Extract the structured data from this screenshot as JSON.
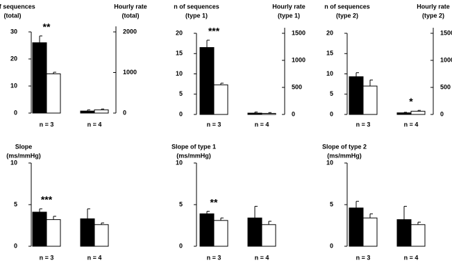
{
  "chart_data": [
    {
      "type": "bar",
      "y_label": [
        "n of sequences",
        "(total)"
      ],
      "y2_label": [
        "Hourly rate",
        "(total)"
      ],
      "categories": [
        "n = 3",
        "n = 4"
      ],
      "ylim": [
        0,
        30
      ],
      "yticks": [
        0,
        10,
        20,
        30
      ],
      "y2lim": [
        0,
        2000
      ],
      "y2ticks": [
        0,
        1000,
        2000
      ],
      "series": [
        {
          "color": "#000000",
          "values": [
            26,
            null
          ],
          "errors": [
            2.5,
            null
          ]
        },
        {
          "color": "#ffffff",
          "values": [
            14.5,
            null
          ],
          "errors": [
            0.6,
            null
          ]
        },
        {
          "color": "#000000",
          "axis": "y2",
          "values": [
            null,
            50
          ],
          "errors": [
            null,
            30
          ]
        },
        {
          "color": "#ffffff",
          "axis": "y2",
          "values": [
            null,
            80
          ],
          "errors": [
            null,
            20
          ]
        }
      ],
      "annotations": [
        {
          "text": "**",
          "category": "n = 3"
        }
      ]
    },
    {
      "type": "bar",
      "y_label": [
        "n of sequences",
        "(type 1)"
      ],
      "y2_label": [
        "Hourly rate",
        "(type 1)"
      ],
      "categories": [
        "n = 3",
        "n = 4"
      ],
      "ylim": [
        0,
        20
      ],
      "yticks": [
        0,
        5,
        10,
        15,
        20
      ],
      "y2lim": [
        0,
        1500
      ],
      "y2ticks": [
        0,
        500,
        1000,
        1500
      ],
      "series": [
        {
          "color": "#000000",
          "values": [
            16.5,
            null
          ],
          "errors": [
            1.8,
            null
          ]
        },
        {
          "color": "#ffffff",
          "values": [
            7.3,
            null
          ],
          "errors": [
            0.4,
            null
          ]
        },
        {
          "color": "#000000",
          "axis": "y2",
          "values": [
            null,
            25
          ],
          "errors": [
            null,
            20
          ]
        },
        {
          "color": "#ffffff",
          "axis": "y2",
          "values": [
            null,
            20
          ],
          "errors": [
            null,
            15
          ]
        }
      ],
      "annotations": [
        {
          "text": "***",
          "category": "n = 3"
        }
      ]
    },
    {
      "type": "bar",
      "y_label": [
        "n of sequences",
        "(type 2)"
      ],
      "y2_label": [
        "Hourly rate",
        "(type 2)"
      ],
      "categories": [
        "n = 3",
        "n = 4"
      ],
      "ylim": [
        0,
        20
      ],
      "yticks": [
        0,
        5,
        10,
        15,
        20
      ],
      "y2lim": [
        0,
        1500
      ],
      "y2ticks": [
        0,
        500,
        1000,
        1500
      ],
      "series": [
        {
          "color": "#000000",
          "values": [
            9.3,
            null
          ],
          "errors": [
            1,
            null
          ]
        },
        {
          "color": "#ffffff",
          "values": [
            7,
            null
          ],
          "errors": [
            1.5,
            null
          ]
        },
        {
          "color": "#000000",
          "axis": "y2",
          "values": [
            null,
            30
          ],
          "errors": [
            null,
            10
          ]
        },
        {
          "color": "#ffffff",
          "axis": "y2",
          "values": [
            null,
            60
          ],
          "errors": [
            null,
            15
          ]
        }
      ],
      "annotations": [
        {
          "text": "*",
          "category": "n = 4"
        }
      ]
    },
    {
      "type": "bar",
      "y_label": [
        "Slope",
        "(ms/mmHg)"
      ],
      "categories": [
        "n = 3",
        "n = 4"
      ],
      "ylim": [
        0,
        10
      ],
      "yticks": [
        0,
        5,
        10
      ],
      "series": [
        {
          "color": "#000000",
          "values": [
            4.1,
            3.3
          ],
          "errors": [
            0.4,
            1.2
          ]
        },
        {
          "color": "#ffffff",
          "values": [
            3.2,
            2.6
          ],
          "errors": [
            0.4,
            0.2
          ]
        }
      ],
      "annotations": [
        {
          "text": "***",
          "category": "n = 3"
        }
      ]
    },
    {
      "type": "bar",
      "y_label": [
        "Slope of type 1",
        "(ms/mmHg)"
      ],
      "categories": [
        "n = 3",
        "n = 4"
      ],
      "ylim": [
        0,
        10
      ],
      "yticks": [
        0,
        5,
        10
      ],
      "series": [
        {
          "color": "#000000",
          "values": [
            3.9,
            3.4
          ],
          "errors": [
            0.3,
            1.4
          ]
        },
        {
          "color": "#ffffff",
          "values": [
            3.1,
            2.6
          ],
          "errors": [
            0.3,
            0.4
          ]
        }
      ],
      "annotations": [
        {
          "text": "**",
          "category": "n = 3"
        }
      ]
    },
    {
      "type": "bar",
      "y_label": [
        "Slope of type 2",
        "(ms/mmHg)"
      ],
      "categories": [
        "n = 3",
        "n = 4"
      ],
      "ylim": [
        0,
        10
      ],
      "yticks": [
        0,
        5,
        10
      ],
      "series": [
        {
          "color": "#000000",
          "values": [
            4.6,
            3.2
          ],
          "errors": [
            0.8,
            1.6
          ]
        },
        {
          "color": "#ffffff",
          "values": [
            3.4,
            2.6
          ],
          "errors": [
            0.5,
            0.3
          ]
        }
      ]
    }
  ]
}
